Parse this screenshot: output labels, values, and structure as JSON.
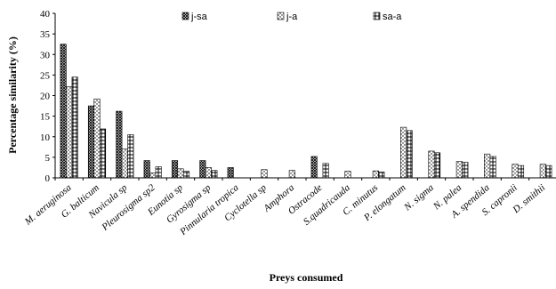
{
  "chart_data": {
    "type": "bar",
    "title": "",
    "xlabel": "Preys consumed",
    "ylabel": "Percentage similarity (%)",
    "ylim": [
      0,
      40
    ],
    "yticks": [
      0,
      5,
      10,
      15,
      20,
      25,
      30,
      35,
      40
    ],
    "grid": false,
    "legend_position": "top-center",
    "categories": [
      "M. aeruginosa",
      "G. balticum",
      "Navicula sp",
      "Pleurosigma sp2",
      "Eunotia sp",
      "Gyrosigma sp",
      "Pinnularia tropica",
      "Cyclotella sp",
      "Amphora",
      "Ostracode",
      "S.quadricauda",
      "C. minutus",
      "P. elongatum",
      "N. sigma",
      "N. palea",
      "A. spendida",
      "S. capronii",
      "D. smithii"
    ],
    "series": [
      {
        "name": "j-sa",
        "pattern": "crosshatch",
        "values": [
          32.5,
          17.5,
          16.2,
          4.2,
          4.2,
          4.2,
          2.5,
          0,
          0,
          5.2,
          0,
          0,
          0,
          0,
          0,
          0,
          0,
          0
        ]
      },
      {
        "name": "j-a",
        "pattern": "dotted",
        "values": [
          22.2,
          19.2,
          7.0,
          1.2,
          2.2,
          2.5,
          0,
          2.0,
          1.8,
          0,
          1.6,
          1.7,
          12.3,
          6.5,
          4.0,
          5.8,
          3.3,
          3.3
        ]
      },
      {
        "name": "sa-a",
        "pattern": "grid",
        "values": [
          24.5,
          11.9,
          10.5,
          2.7,
          1.6,
          1.8,
          0,
          0,
          0,
          3.5,
          0,
          1.4,
          11.5,
          6.1,
          3.8,
          5.2,
          3.0,
          3.0
        ]
      }
    ]
  }
}
